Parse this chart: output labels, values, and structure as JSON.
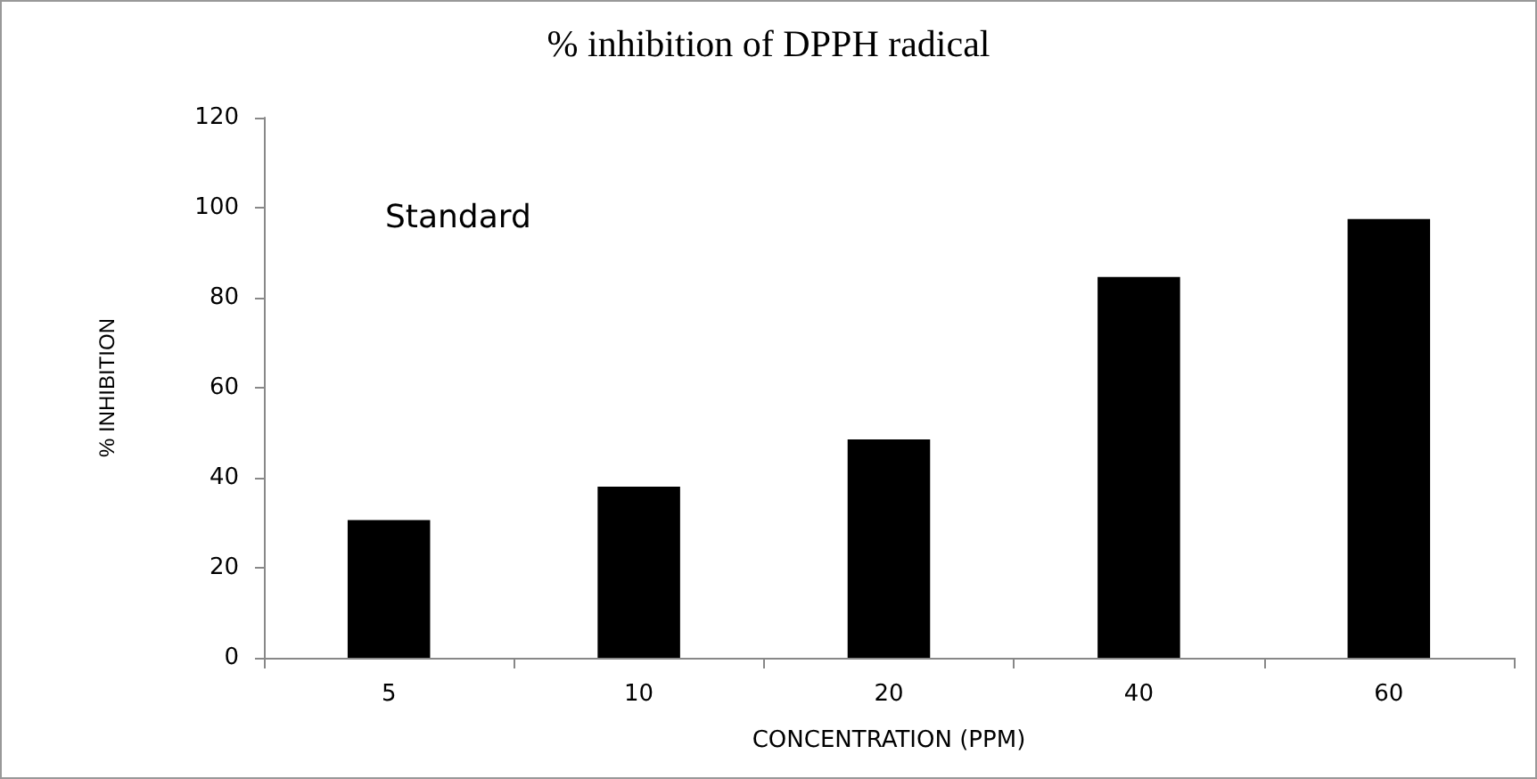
{
  "chart_data": {
    "type": "bar",
    "title": "% inhibition of DPPH radical",
    "xlabel": "CONCENTRATION (PPM)",
    "ylabel": "% INHIBITION",
    "annotations": [
      "Standard"
    ],
    "categories": [
      "5",
      "10",
      "20",
      "40",
      "60"
    ],
    "values": [
      30.6,
      38,
      48.5,
      84.6,
      97.5
    ],
    "color": "#000000",
    "ylim": [
      0,
      120
    ],
    "yticks": [
      0,
      20,
      40,
      60,
      80,
      100,
      120
    ],
    "grid": false
  }
}
